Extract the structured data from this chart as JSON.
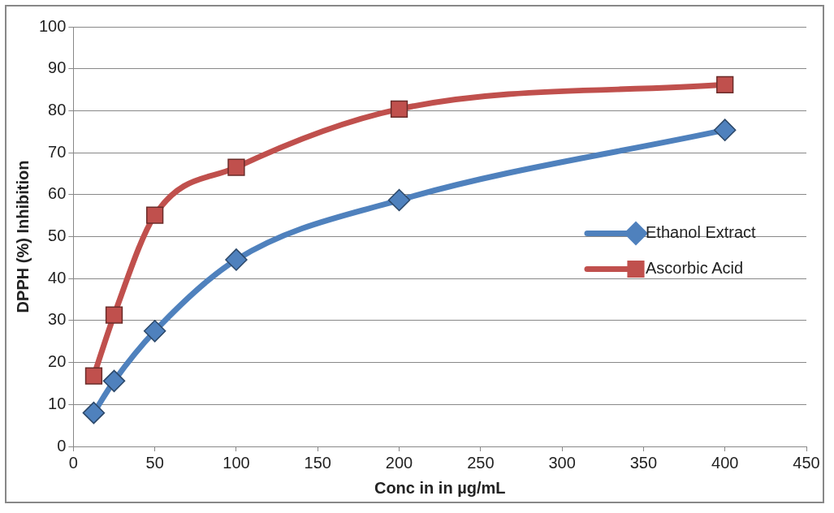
{
  "chart_data": {
    "type": "line",
    "xlabel": "Conc in in µg/mL",
    "ylabel": "DPPH (%) Inhibition",
    "x": [
      12.5,
      25,
      50,
      100,
      200,
      400
    ],
    "series": [
      {
        "name": "Ethanol Extract",
        "color": "#4f81bd",
        "marker": "diamond",
        "values": [
          8.0,
          15.6,
          27.5,
          44.5,
          58.7,
          75.4
        ]
      },
      {
        "name": "Ascorbic Acid",
        "color": "#c0504d",
        "marker": "square",
        "values": [
          16.8,
          31.3,
          55.1,
          66.5,
          80.4,
          86.2
        ]
      }
    ],
    "xlim": [
      0,
      450
    ],
    "xticks": [
      0,
      50,
      100,
      150,
      200,
      250,
      300,
      350,
      400,
      450
    ],
    "ylim": [
      0,
      100
    ],
    "yticks": [
      0,
      10,
      20,
      30,
      40,
      50,
      60,
      70,
      80,
      90,
      100
    ],
    "grid": "y",
    "legend": "right",
    "line_style": "solid"
  }
}
